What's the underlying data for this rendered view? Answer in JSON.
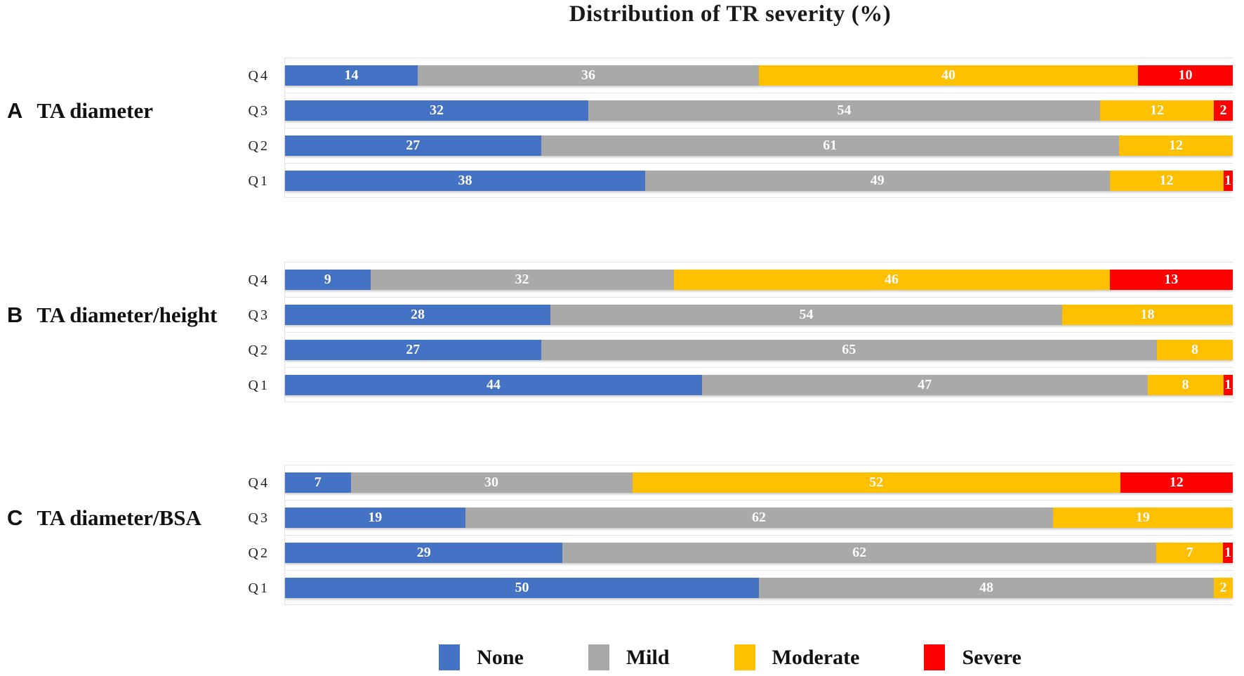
{
  "title": "Distribution of TR severity (%)",
  "chart_data": {
    "type": "bar",
    "orientation": "horizontal",
    "stacked": true,
    "units": "percent",
    "title": "Distribution of TR severity (%)",
    "xlim": [
      0,
      100
    ],
    "axis_tick_labels_visible": false,
    "grid": "row-separators-only",
    "legend_position": "bottom",
    "series": [
      "None",
      "Mild",
      "Moderate",
      "Severe"
    ],
    "series_colors": [
      "#4472C4",
      "#A9A9A9",
      "#FFC000",
      "#FF0000"
    ],
    "value_label_style": "white bold, inside segment",
    "panels": [
      {
        "panel_letter": "A",
        "panel_title": "TA diameter",
        "rows": [
          {
            "category": "Q4",
            "values": [
              14,
              36,
              40,
              10
            ]
          },
          {
            "category": "Q3",
            "values": [
              32,
              54,
              12,
              2
            ]
          },
          {
            "category": "Q2",
            "values": [
              27,
              61,
              12,
              0
            ]
          },
          {
            "category": "Q1",
            "values": [
              38,
              49,
              12,
              1
            ]
          }
        ]
      },
      {
        "panel_letter": "B",
        "panel_title": "TA diameter/height",
        "rows": [
          {
            "category": "Q4",
            "values": [
              9,
              32,
              46,
              13
            ]
          },
          {
            "category": "Q3",
            "values": [
              28,
              54,
              18,
              0
            ]
          },
          {
            "category": "Q2",
            "values": [
              27,
              65,
              8,
              0
            ]
          },
          {
            "category": "Q1",
            "values": [
              44,
              47,
              8,
              1
            ]
          }
        ]
      },
      {
        "panel_letter": "C",
        "panel_title": "TA diameter/BSA",
        "rows": [
          {
            "category": "Q4",
            "values": [
              7,
              30,
              52,
              12
            ]
          },
          {
            "category": "Q3",
            "values": [
              19,
              62,
              19,
              0
            ]
          },
          {
            "category": "Q2",
            "values": [
              29,
              62,
              7,
              1
            ]
          },
          {
            "category": "Q1",
            "values": [
              50,
              48,
              2,
              0
            ]
          }
        ]
      }
    ],
    "legend": [
      {
        "label": "None",
        "color": "#4472C4"
      },
      {
        "label": "Mild",
        "color": "#A9A9A9"
      },
      {
        "label": "Moderate",
        "color": "#FFC000"
      },
      {
        "label": "Severe",
        "color": "#FF0000"
      }
    ]
  }
}
